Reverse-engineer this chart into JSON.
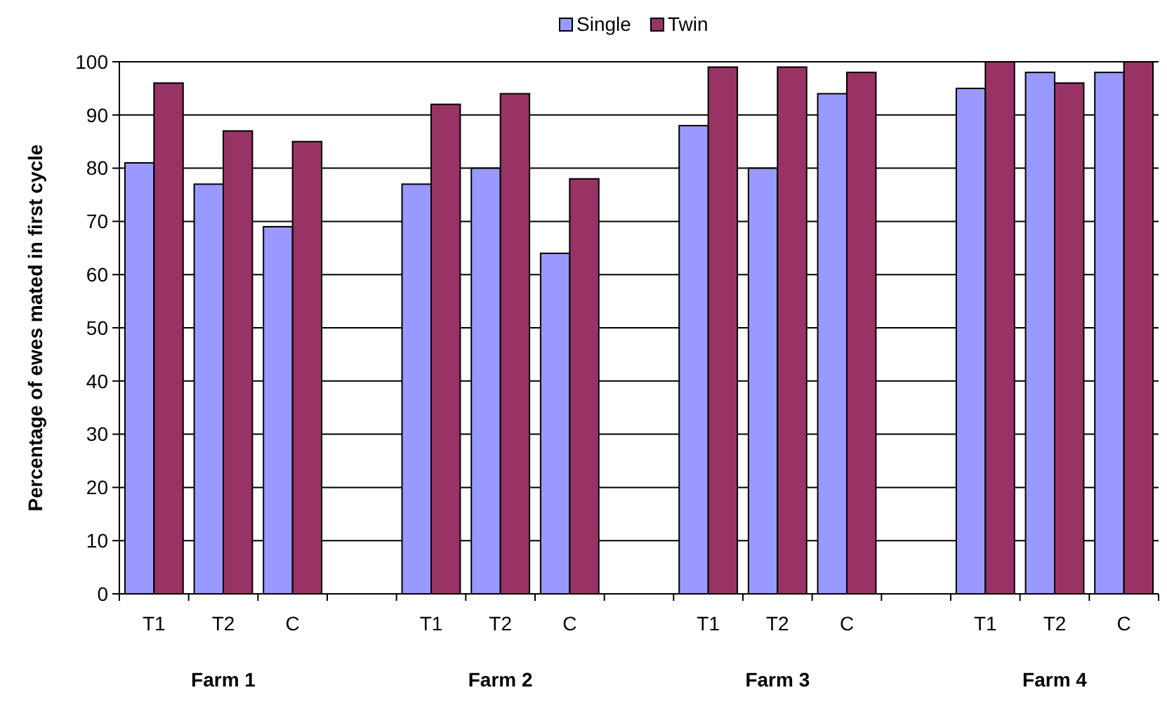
{
  "chart_data": {
    "type": "bar",
    "ylabel": "Percentage of ewes mated in first cycle",
    "categories": [
      "T1",
      "T2",
      "C",
      null,
      "T1",
      "T2",
      "C",
      null,
      "T1",
      "T2",
      "C",
      null,
      "T1",
      "T2",
      "C"
    ],
    "series": [
      {
        "name": "Single",
        "color": "#9999ff",
        "values": [
          81,
          77,
          69,
          null,
          77,
          80,
          64,
          null,
          88,
          80,
          94,
          null,
          95,
          98,
          98
        ]
      },
      {
        "name": "Twin",
        "color": "#993366",
        "values": [
          96,
          87,
          85,
          null,
          92,
          94,
          78,
          null,
          99,
          99,
          98,
          null,
          100,
          96,
          100
        ]
      }
    ],
    "ylim": [
      0,
      100
    ],
    "yticks": [
      0,
      10,
      20,
      30,
      40,
      50,
      60,
      70,
      80,
      90,
      100
    ],
    "grid": "y",
    "legend": "top",
    "annotations": [
      "Farm 1",
      "Farm 2",
      "Farm 3",
      "Farm 4"
    ]
  }
}
